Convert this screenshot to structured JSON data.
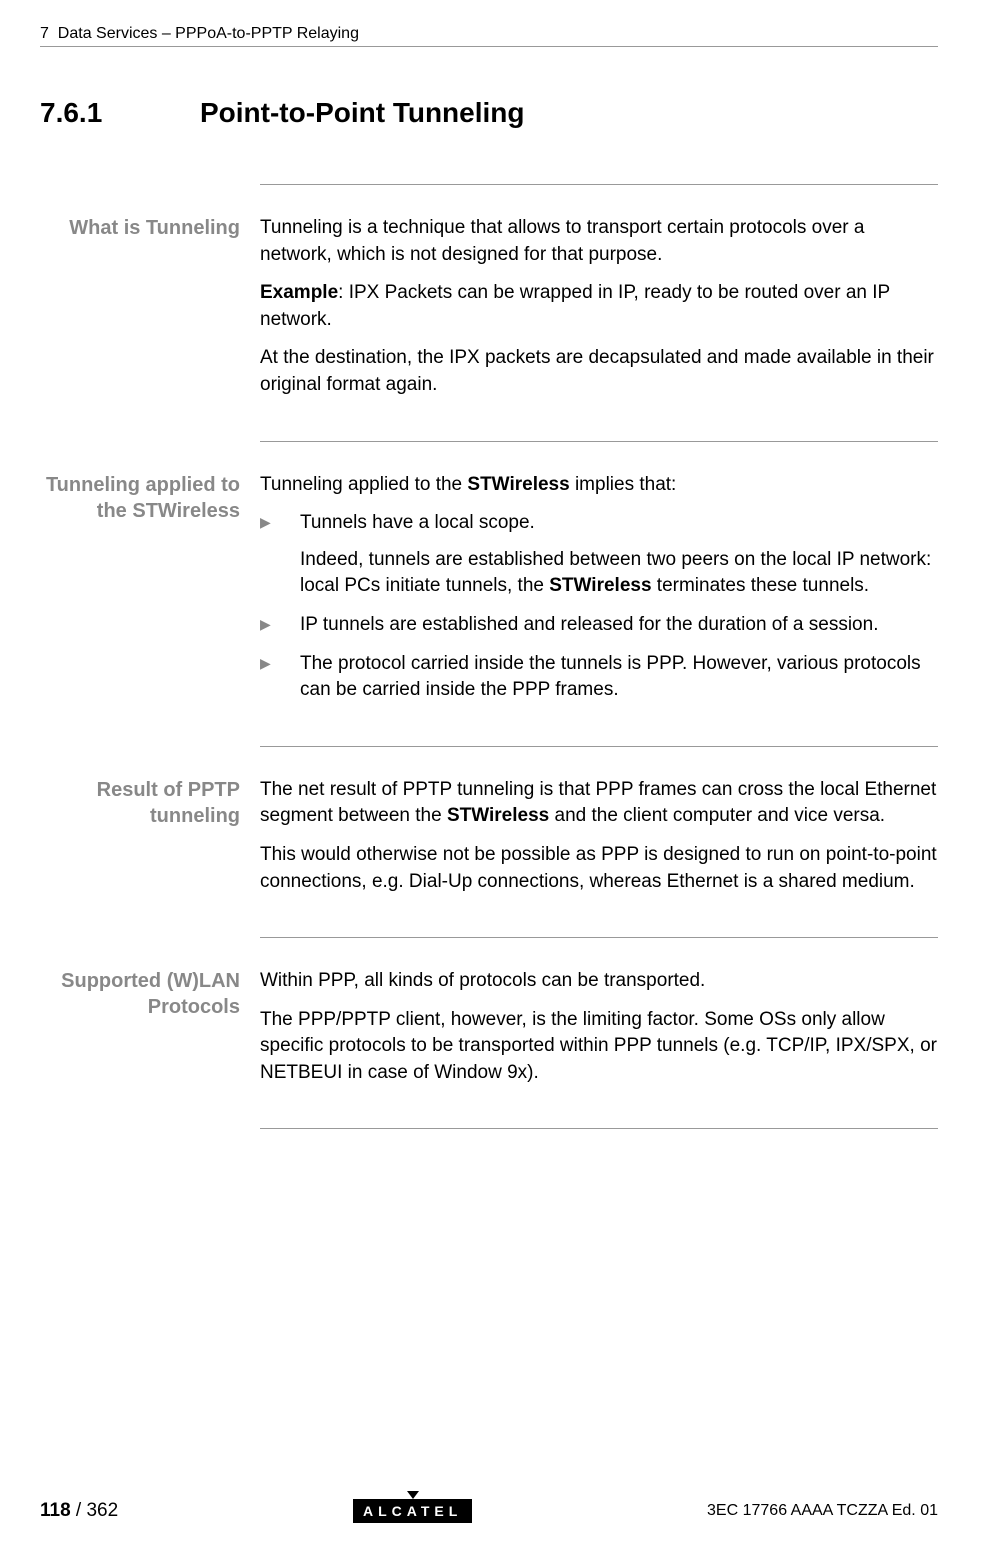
{
  "header": {
    "chapter_num": "7",
    "chapter_title": "Data Services – PPPoA‑to‑PPTP Relaying"
  },
  "section": {
    "number": "7.6.1",
    "title": "Point‑to‑Point Tunneling"
  },
  "blocks": {
    "tunneling": {
      "label": "What is Tunneling",
      "p1": "Tunneling is a technique that allows to transport certain protocols over a network, which is not designed for that purpose.",
      "p2a": "Example",
      "p2b": ": IPX Packets can be wrapped in IP, ready to be routed over an IP network.",
      "p3": "At the destination, the IPX packets are decapsulated and made available in their original format again."
    },
    "applied": {
      "label": "Tunneling applied to the STWireless",
      "intro_a": "Tunneling applied to the ",
      "intro_b": "STWireless",
      "intro_c": " implies that:",
      "li1": "Tunnels have a local scope.",
      "li1_sub_a": "Indeed, tunnels are established between two peers on the local IP network: local PCs initiate tunnels, the ",
      "li1_sub_b": "STWireless",
      "li1_sub_c": " terminates these tunnels.",
      "li2": "IP tunnels are established and released for the duration of a session.",
      "li3": "The protocol carried inside the tunnels is PPP. However, various protocols can be carried inside the PPP frames."
    },
    "result": {
      "label": "Result of PPTP tunneling",
      "p1_a": "The net result of PPTP tunneling is that PPP frames can cross the local Ethernet segment between the ",
      "p1_b": "STWireless",
      "p1_c": " and the client computer and vice versa.",
      "p2": "This would otherwise not be possible as PPP is designed to run on point‑to‑point connections, e.g. Dial‑Up connections, whereas Ethernet is a shared medium."
    },
    "protocols": {
      "label": "Supported (W)LAN Protocols",
      "p1": "Within PPP, all kinds of protocols can be transported.",
      "p2": "The PPP/PPTP client, however, is the limiting factor. Some OSs only allow specific protocols  to be transported within PPP tunnels (e.g. TCP/IP, IPX/SPX, or NETBEUI in case of Window 9x)."
    }
  },
  "footer": {
    "page_current": "118",
    "page_total": " / 362",
    "logo": "ALCATEL",
    "doc_ref": "3EC 17766 AAAA TCZZA Ed. 01"
  }
}
